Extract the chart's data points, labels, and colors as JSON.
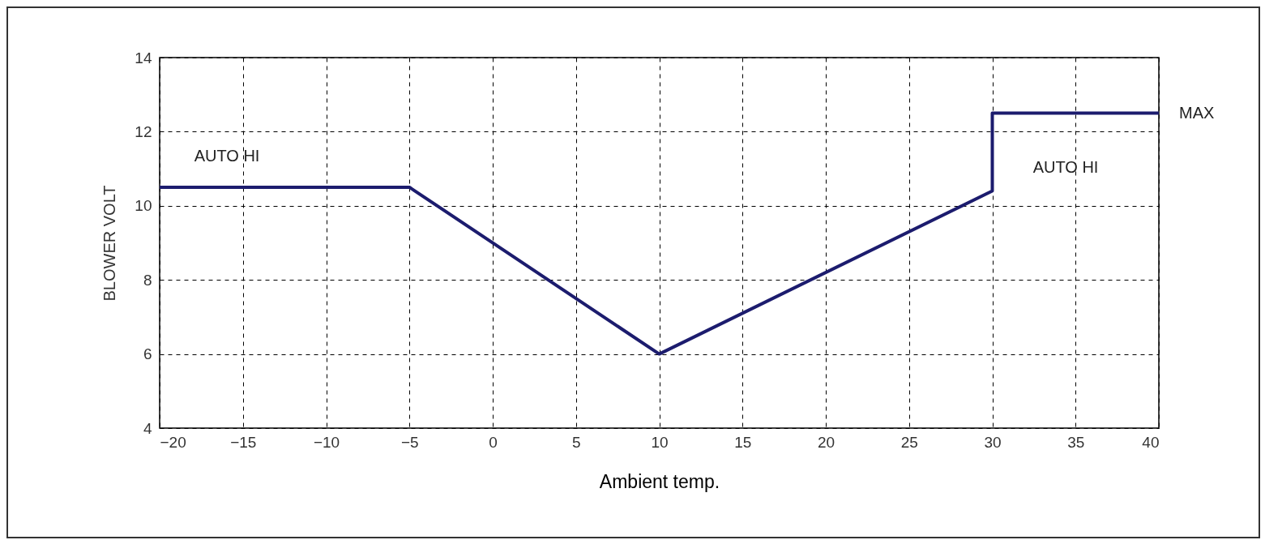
{
  "chart_data": {
    "type": "line",
    "xlabel": "Ambient temp.",
    "ylabel": "BLOWER VOLT",
    "series": [
      {
        "color": "#1c1c6e",
        "x": [
          -20,
          -5,
          10,
          30,
          30,
          40
        ],
        "values": [
          10.5,
          10.5,
          6,
          10.4,
          12.5,
          12.5
        ]
      }
    ],
    "xlim": [
      -20,
      40
    ],
    "xticks": [
      -20,
      -15,
      -10,
      -5,
      0,
      5,
      10,
      15,
      20,
      25,
      30,
      35,
      40
    ],
    "ylim": [
      4,
      14
    ],
    "yticks": [
      4,
      6,
      8,
      10,
      12,
      14
    ],
    "grid": true,
    "line_style": "solid",
    "marker": "none",
    "annotations": [
      "AUTO HI",
      "AUTO HI",
      {
        "text": "MAX",
        "x": 40,
        "y": 12.5
      }
    ]
  }
}
